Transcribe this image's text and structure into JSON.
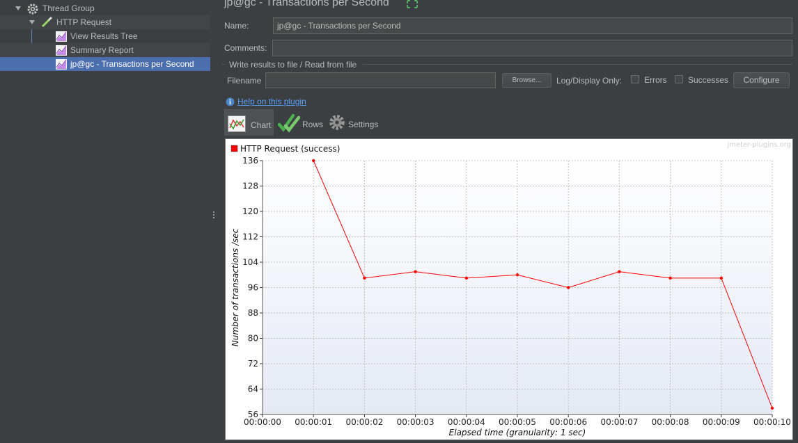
{
  "tree": {
    "items": [
      {
        "label": "Thread Group"
      },
      {
        "label": "HTTP Request"
      },
      {
        "label": "View Results Tree"
      },
      {
        "label": "Summary Report"
      },
      {
        "label": "jp@gc - Transactions per Second"
      }
    ]
  },
  "panel": {
    "title": "jp@gc - Transactions per Second",
    "name_label": "Name:",
    "name_value": "jp@gc - Transactions per Second",
    "comments_label": "Comments:",
    "comments_value": "",
    "file_group_title": "Write results to file / Read from file",
    "filename_label": "Filename",
    "filename_value": "",
    "browse_label": "Browse...",
    "log_display_label": "Log/Display Only:",
    "errors_label": "Errors",
    "successes_label": "Successes",
    "configure_label": "Configure",
    "help_link": "Help on this plugin"
  },
  "tabs": [
    {
      "label": "Chart"
    },
    {
      "label": "Rows"
    },
    {
      "label": "Settings"
    }
  ],
  "colors": {
    "series": "#ff0000",
    "selection": "#4b6eaf",
    "link": "#589df6"
  },
  "chart_data": {
    "type": "line",
    "watermark": "jmeter-plugins.org",
    "xlabel": "Elapsed time (granularity: 1 sec)",
    "ylabel": "Number of transactions /sec",
    "x": [
      "00:00:00",
      "00:00:01",
      "00:00:02",
      "00:00:03",
      "00:00:04",
      "00:00:05",
      "00:00:06",
      "00:00:07",
      "00:00:08",
      "00:00:09",
      "00:00:10"
    ],
    "yticks": [
      56,
      64,
      72,
      80,
      88,
      96,
      104,
      112,
      120,
      128,
      136
    ],
    "ylim": [
      56,
      136
    ],
    "grid": true,
    "legend_position": "top-left",
    "series": [
      {
        "name": "HTTP Request (success)",
        "color": "#ff0000",
        "x": [
          1,
          2,
          3,
          4,
          5,
          6,
          7,
          8,
          9,
          10
        ],
        "values": [
          136,
          99,
          101,
          99,
          100,
          96,
          101,
          99,
          99,
          58
        ]
      }
    ]
  }
}
